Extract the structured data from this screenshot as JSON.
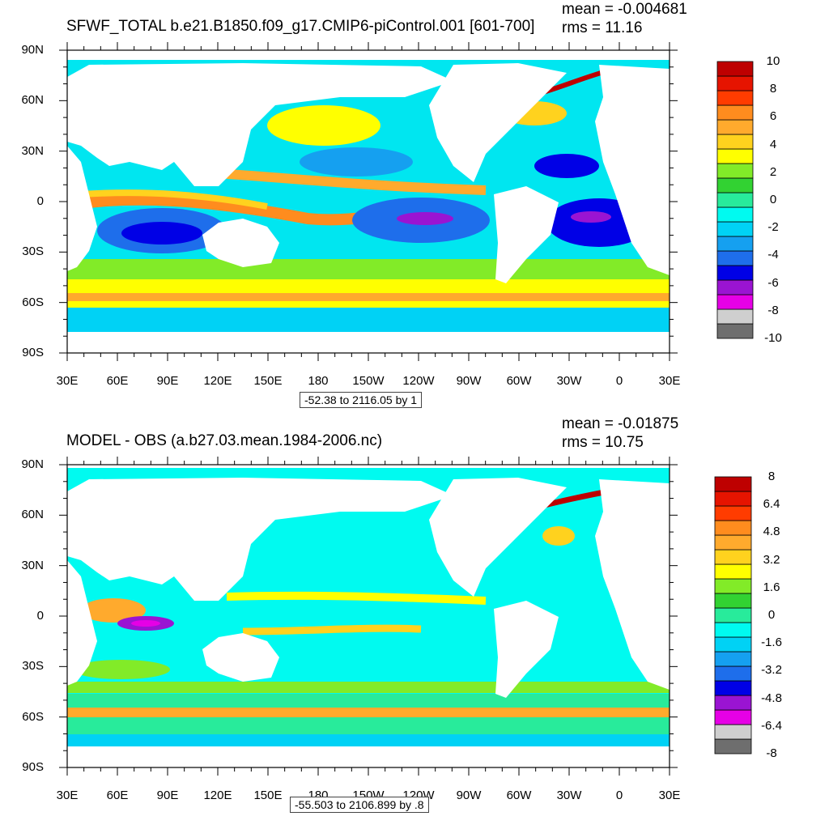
{
  "panels": [
    {
      "title": "SFWF_TOTAL b.e21.B1850.f09_g17.CMIP6-piControl.001 [601-700]",
      "mean": "mean = -0.004681",
      "rms": "rms = 11.16",
      "range_label": "-52.38 to 2116.05 by 1",
      "colorbar_labels": [
        "10",
        "8",
        "6",
        "4",
        "2",
        "0",
        "-2",
        "-4",
        "-6",
        "-8",
        "-10"
      ]
    },
    {
      "title": "MODEL - OBS (a.b27.03.mean.1984-2006.nc)",
      "mean": "mean = -0.01875",
      "rms": "rms = 10.75",
      "range_label": "-55.503 to 2106.899 by .8",
      "colorbar_labels": [
        "8",
        "6.4",
        "4.8",
        "3.2",
        "1.6",
        "0",
        "-1.6",
        "-3.2",
        "-4.8",
        "-6.4",
        "-8"
      ]
    }
  ],
  "axes": {
    "lat_labels": [
      "90N",
      "60N",
      "30N",
      "0",
      "30S",
      "60S",
      "90S"
    ],
    "lon_labels": [
      "30E",
      "60E",
      "90E",
      "120E",
      "150E",
      "180",
      "150W",
      "120W",
      "90W",
      "60W",
      "30W",
      "0",
      "30E"
    ]
  },
  "colors": {
    "palette": [
      "#6e6e6e",
      "#cfcfcf",
      "#e600e6",
      "#9a14d2",
      "#0000e6",
      "#1e6eeb",
      "#15a0f0",
      "#00d2f5",
      "#00faf0",
      "#28eb9b",
      "#32d232",
      "#82eb28",
      "#ffff00",
      "#ffd21e",
      "#ffaa2d",
      "#ff8c1e",
      "#ff3c00",
      "#e61400",
      "#be0000"
    ],
    "ocean_base": "#00e6f0",
    "land": "#ffffff"
  }
}
